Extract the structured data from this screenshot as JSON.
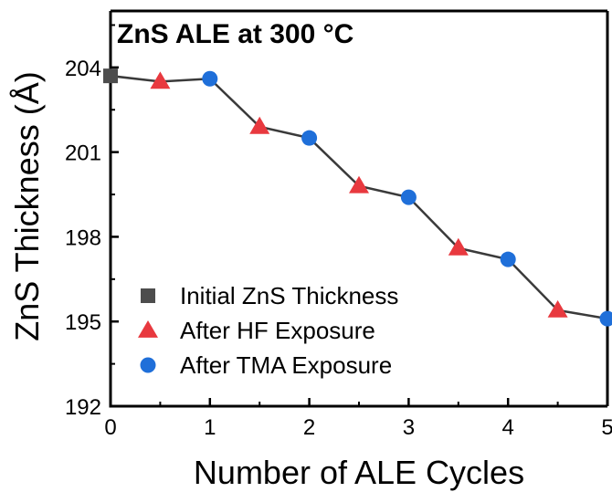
{
  "chart_data": {
    "type": "scatter",
    "title": "ZnS ALE at 300 °C",
    "xlabel": "Number of ALE Cycles",
    "ylabel": "ZnS Thickness (Å)",
    "xlim": [
      0,
      5
    ],
    "ylim": [
      192,
      206
    ],
    "x_ticks": [
      0,
      1,
      2,
      3,
      4,
      5
    ],
    "x_tick_labels": [
      "0",
      "1",
      "2",
      "3",
      "4",
      "5"
    ],
    "y_ticks": [
      192,
      195,
      198,
      201,
      204
    ],
    "y_tick_labels": [
      "192",
      "195",
      "198",
      "201",
      "204"
    ],
    "grid": false,
    "legend_position": "lower-left",
    "connecting_line": {
      "color": "#3a3a3a",
      "x": [
        0,
        0.5,
        1,
        1.5,
        2,
        2.5,
        3,
        3.5,
        4,
        4.5,
        5
      ],
      "y": [
        203.7,
        203.5,
        203.6,
        201.9,
        201.5,
        199.8,
        199.4,
        197.6,
        197.2,
        195.4,
        195.1
      ]
    },
    "series": [
      {
        "name": "Initial ZnS Thickness",
        "marker": "square",
        "color": "#4d4d4d",
        "x": [
          0
        ],
        "y": [
          203.7
        ]
      },
      {
        "name": "After HF Exposure",
        "marker": "triangle",
        "color": "#e8393f",
        "x": [
          0.5,
          1.5,
          2.5,
          3.5,
          4.5
        ],
        "y": [
          203.5,
          201.9,
          199.8,
          197.6,
          195.4
        ]
      },
      {
        "name": "After TMA Exposure",
        "marker": "circle",
        "color": "#1f6fd9",
        "x": [
          1,
          2,
          3,
          4,
          5
        ],
        "y": [
          203.6,
          201.5,
          199.4,
          197.2,
          195.1
        ]
      }
    ]
  }
}
